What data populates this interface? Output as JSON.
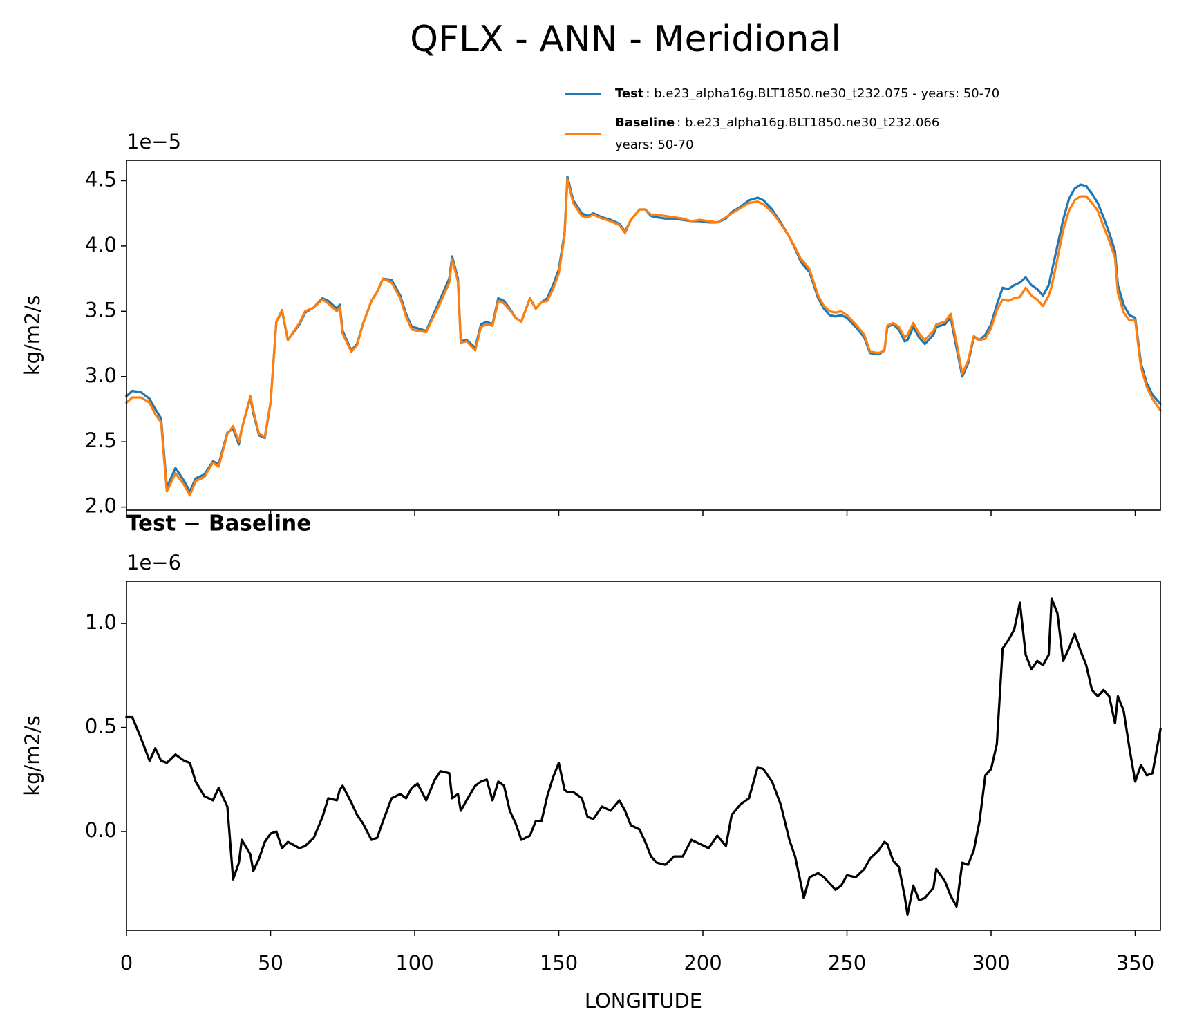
{
  "title": "QFLX - ANN - Meridional",
  "chart_data": [
    {
      "type": "line",
      "offset_label": "1e−5",
      "ylabel": "kg/m2/s",
      "xlim": [
        0,
        358.75
      ],
      "xticks": [
        0,
        50,
        100,
        150,
        200,
        250,
        300,
        350
      ],
      "show_xtick_labels": false,
      "ylim": [
        1.977,
        4.656
      ],
      "yticks": [
        {
          "value": 2,
          "label": "2.0"
        },
        2.5,
        {
          "value": 3,
          "label": "3.0"
        },
        3.5,
        {
          "value": 4,
          "label": "4.0"
        },
        4.5
      ],
      "x": [
        0,
        2,
        5,
        8,
        10,
        12,
        14,
        17,
        20,
        22,
        24,
        27,
        30,
        32,
        35,
        37,
        39,
        40,
        43,
        44,
        46,
        48,
        50,
        52,
        54,
        56,
        60,
        62,
        65,
        68,
        70,
        73,
        74,
        75,
        78,
        80,
        82,
        85,
        87,
        89,
        92,
        95,
        97,
        99,
        101,
        104,
        107,
        109,
        112,
        113,
        115,
        116,
        118,
        121,
        123,
        125,
        127,
        129,
        131,
        133,
        135,
        137,
        140,
        142,
        144,
        146,
        148,
        150,
        152,
        153,
        155,
        158,
        160,
        162,
        165,
        168,
        171,
        173,
        175,
        178,
        180,
        182,
        184,
        187,
        190,
        193,
        196,
        199,
        202,
        205,
        208,
        210,
        213,
        216,
        219,
        221,
        224,
        227,
        230,
        232,
        234,
        235,
        237,
        240,
        242,
        244,
        246,
        248,
        250,
        253,
        256,
        258,
        261,
        263,
        264,
        266,
        268,
        270,
        271,
        273,
        275,
        277,
        280,
        281,
        284,
        286,
        288,
        290,
        292,
        294,
        296,
        298,
        300,
        302,
        304,
        306,
        308,
        310,
        312,
        314,
        316,
        318,
        320,
        321,
        323,
        325,
        327,
        329,
        331,
        333,
        335,
        337,
        339,
        341,
        343,
        344,
        346,
        348,
        350,
        352,
        354,
        356,
        358.75
      ],
      "legend": "upper right",
      "series": [
        {
          "name": "Test",
          "description": [
            ": b.e23_alpha16g.BLT1850.ne30_t232.075 - years: 50-70"
          ],
          "color": "#1f77b4",
          "values": [
            2.85,
            2.89,
            2.88,
            2.83,
            2.75,
            2.68,
            2.15,
            2.3,
            2.2,
            2.12,
            2.22,
            2.25,
            2.35,
            2.33,
            2.57,
            2.6,
            2.48,
            2.6,
            2.84,
            2.72,
            2.55,
            2.53,
            2.8,
            3.42,
            3.5,
            3.28,
            3.4,
            3.49,
            3.53,
            3.6,
            3.58,
            3.52,
            3.55,
            3.35,
            3.2,
            3.25,
            3.4,
            3.58,
            3.65,
            3.75,
            3.74,
            3.62,
            3.48,
            3.38,
            3.37,
            3.35,
            3.5,
            3.6,
            3.75,
            3.92,
            3.75,
            3.27,
            3.28,
            3.22,
            3.4,
            3.42,
            3.4,
            3.6,
            3.58,
            3.52,
            3.45,
            3.42,
            3.6,
            3.52,
            3.57,
            3.6,
            3.7,
            3.82,
            4.1,
            4.53,
            4.35,
            4.25,
            4.23,
            4.25,
            4.22,
            4.2,
            4.17,
            4.11,
            4.2,
            4.28,
            4.28,
            4.23,
            4.22,
            4.21,
            4.21,
            4.2,
            4.19,
            4.19,
            4.18,
            4.18,
            4.21,
            4.26,
            4.3,
            4.35,
            4.37,
            4.35,
            4.28,
            4.18,
            4.07,
            3.98,
            3.88,
            3.85,
            3.8,
            3.6,
            3.52,
            3.47,
            3.46,
            3.47,
            3.45,
            3.38,
            3.3,
            3.18,
            3.17,
            3.2,
            3.38,
            3.4,
            3.36,
            3.27,
            3.28,
            3.38,
            3.3,
            3.25,
            3.32,
            3.38,
            3.4,
            3.45,
            3.22,
            3.0,
            3.1,
            3.3,
            3.28,
            3.32,
            3.4,
            3.55,
            3.68,
            3.67,
            3.7,
            3.72,
            3.76,
            3.7,
            3.67,
            3.62,
            3.7,
            3.8,
            4.0,
            4.2,
            4.36,
            4.44,
            4.47,
            4.46,
            4.4,
            4.33,
            4.22,
            4.1,
            3.96,
            3.7,
            3.55,
            3.47,
            3.45,
            3.1,
            2.95,
            2.86,
            2.79
          ]
        },
        {
          "name": "Baseline",
          "description": [
            ": b.e23_alpha16g.BLT1850.ne30_t232.066",
            "years: 50-70"
          ],
          "color": "#ff7f0e",
          "values": [
            2.8,
            2.84,
            2.84,
            2.8,
            2.71,
            2.65,
            2.12,
            2.26,
            2.17,
            2.09,
            2.2,
            2.23,
            2.34,
            2.31,
            2.56,
            2.62,
            2.5,
            2.6,
            2.85,
            2.74,
            2.56,
            2.54,
            2.8,
            3.42,
            3.51,
            3.28,
            3.41,
            3.5,
            3.53,
            3.59,
            3.56,
            3.5,
            3.53,
            3.33,
            3.19,
            3.24,
            3.4,
            3.58,
            3.65,
            3.75,
            3.72,
            3.6,
            3.46,
            3.36,
            3.35,
            3.34,
            3.48,
            3.57,
            3.72,
            3.9,
            3.73,
            3.26,
            3.27,
            3.2,
            3.38,
            3.4,
            3.39,
            3.58,
            3.56,
            3.51,
            3.45,
            3.42,
            3.6,
            3.52,
            3.57,
            3.58,
            3.67,
            3.79,
            4.08,
            4.51,
            4.33,
            4.23,
            4.22,
            4.24,
            4.21,
            4.19,
            4.16,
            4.1,
            4.2,
            4.28,
            4.28,
            4.24,
            4.24,
            4.23,
            4.22,
            4.21,
            4.19,
            4.2,
            4.19,
            4.18,
            4.22,
            4.25,
            4.29,
            4.33,
            4.34,
            4.32,
            4.26,
            4.17,
            4.07,
            3.99,
            3.9,
            3.88,
            3.82,
            3.62,
            3.54,
            3.5,
            3.49,
            3.5,
            3.47,
            3.4,
            3.32,
            3.19,
            3.18,
            3.2,
            3.39,
            3.41,
            3.38,
            3.3,
            3.32,
            3.41,
            3.33,
            3.28,
            3.35,
            3.4,
            3.42,
            3.48,
            3.26,
            3.02,
            3.12,
            3.31,
            3.28,
            3.29,
            3.37,
            3.51,
            3.59,
            3.58,
            3.6,
            3.61,
            3.68,
            3.62,
            3.59,
            3.54,
            3.62,
            3.69,
            3.9,
            4.12,
            4.27,
            4.35,
            4.38,
            4.38,
            4.33,
            4.27,
            4.15,
            4.04,
            3.91,
            3.64,
            3.49,
            3.43,
            3.43,
            3.07,
            2.92,
            2.83,
            2.74
          ]
        }
      ]
    },
    {
      "type": "line",
      "title": "Test − Baseline",
      "offset_label": "1e−6",
      "ylabel": "kg/m2/s",
      "xlabel": "LONGITUDE",
      "xlim": [
        0,
        358.75
      ],
      "xticks": [
        0,
        50,
        100,
        150,
        200,
        250,
        300,
        350
      ],
      "show_xtick_labels": true,
      "ylim": [
        -0.475,
        1.203
      ],
      "yticks": [
        {
          "value": 0,
          "label": "0.0"
        },
        0.5,
        {
          "value": 1,
          "label": "1.0"
        }
      ],
      "x": [
        0,
        2,
        5,
        8,
        10,
        12,
        14,
        17,
        20,
        22,
        24,
        27,
        30,
        32,
        35,
        37,
        39,
        40,
        43,
        44,
        46,
        48,
        50,
        52,
        54,
        56,
        60,
        62,
        65,
        68,
        70,
        73,
        74,
        75,
        78,
        80,
        82,
        85,
        87,
        89,
        92,
        95,
        97,
        99,
        101,
        104,
        107,
        109,
        112,
        113,
        115,
        116,
        118,
        121,
        123,
        125,
        127,
        129,
        131,
        133,
        135,
        137,
        140,
        142,
        144,
        146,
        148,
        150,
        152,
        153,
        155,
        158,
        160,
        162,
        165,
        168,
        171,
        173,
        175,
        178,
        180,
        182,
        184,
        187,
        190,
        193,
        196,
        199,
        202,
        205,
        208,
        210,
        213,
        216,
        219,
        221,
        224,
        227,
        230,
        232,
        234,
        235,
        237,
        240,
        242,
        244,
        246,
        248,
        250,
        253,
        256,
        258,
        261,
        263,
        264,
        266,
        268,
        270,
        271,
        273,
        275,
        277,
        280,
        281,
        284,
        286,
        288,
        290,
        292,
        294,
        296,
        298,
        300,
        302,
        304,
        306,
        308,
        310,
        312,
        314,
        316,
        318,
        320,
        321,
        323,
        325,
        327,
        329,
        331,
        333,
        335,
        337,
        339,
        341,
        343,
        344,
        346,
        348,
        350,
        352,
        354,
        356,
        358.75
      ],
      "color": "#000000",
      "values": [
        0.55,
        0.55,
        0.45,
        0.34,
        0.4,
        0.34,
        0.33,
        0.37,
        0.34,
        0.33,
        0.24,
        0.17,
        0.15,
        0.21,
        0.12,
        -0.23,
        -0.15,
        -0.04,
        -0.11,
        -0.19,
        -0.13,
        -0.05,
        -0.01,
        0.0,
        -0.08,
        -0.05,
        -0.08,
        -0.07,
        -0.03,
        0.07,
        0.16,
        0.15,
        0.2,
        0.22,
        0.14,
        0.08,
        0.04,
        -0.04,
        -0.03,
        0.05,
        0.16,
        0.18,
        0.16,
        0.21,
        0.23,
        0.15,
        0.25,
        0.29,
        0.28,
        0.16,
        0.18,
        0.1,
        0.15,
        0.22,
        0.24,
        0.25,
        0.15,
        0.24,
        0.22,
        0.1,
        0.04,
        -0.04,
        -0.02,
        0.05,
        0.05,
        0.17,
        0.26,
        0.33,
        0.2,
        0.19,
        0.19,
        0.16,
        0.07,
        0.06,
        0.12,
        0.1,
        0.15,
        0.1,
        0.03,
        0.01,
        -0.05,
        -0.12,
        -0.15,
        -0.16,
        -0.12,
        -0.12,
        -0.04,
        -0.06,
        -0.08,
        -0.02,
        -0.07,
        0.08,
        0.13,
        0.16,
        0.31,
        0.3,
        0.24,
        0.13,
        -0.04,
        -0.12,
        -0.25,
        -0.32,
        -0.22,
        -0.2,
        -0.22,
        -0.25,
        -0.28,
        -0.26,
        -0.21,
        -0.22,
        -0.18,
        -0.13,
        -0.09,
        -0.05,
        -0.06,
        -0.14,
        -0.17,
        -0.31,
        -0.4,
        -0.26,
        -0.33,
        -0.32,
        -0.27,
        -0.18,
        -0.24,
        -0.31,
        -0.36,
        -0.15,
        -0.16,
        -0.09,
        0.05,
        0.27,
        0.3,
        0.42,
        0.88,
        0.92,
        0.97,
        1.1,
        0.85,
        0.78,
        0.82,
        0.8,
        0.85,
        1.12,
        1.05,
        0.82,
        0.88,
        0.95,
        0.87,
        0.8,
        0.68,
        0.65,
        0.68,
        0.65,
        0.52,
        0.65,
        0.58,
        0.4,
        0.24,
        0.32,
        0.27,
        0.28,
        0.49
      ]
    }
  ]
}
